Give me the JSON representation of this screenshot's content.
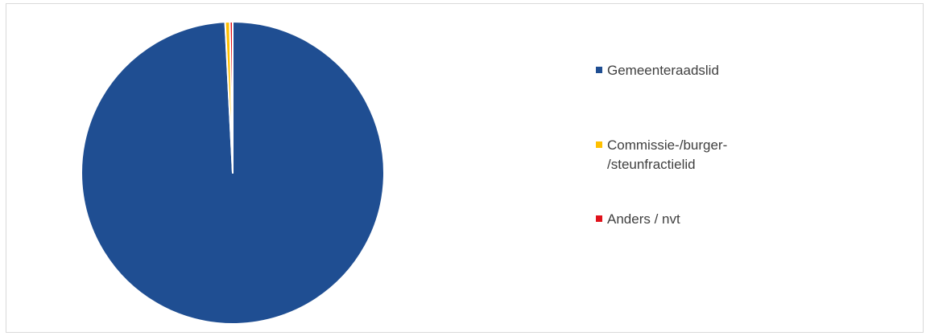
{
  "chart_data": {
    "type": "pie",
    "title": "",
    "categories": [
      "Gemeenteraadslid",
      "Commissie-/burger-\n/steunfractielid",
      "Anders / nvt"
    ],
    "values": [
      99.2,
      0.5,
      0.3
    ],
    "colors": [
      "#1f4e92",
      "#ffc000",
      "#e0121b"
    ],
    "legend_position": "right"
  }
}
